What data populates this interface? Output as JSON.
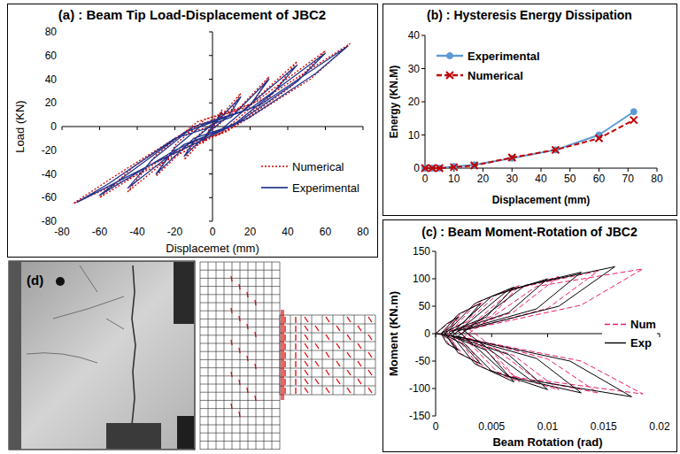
{
  "chart_data": [
    {
      "type": "line",
      "title": "(a) : Beam Tip Load-Displacement of JBC2",
      "x_label": "Displacemet (mm)",
      "y_label": "Load (KN)",
      "xlim": [
        -80,
        80
      ],
      "ylim": [
        -80,
        80
      ],
      "xticks": [
        -80,
        -60,
        -40,
        -20,
        0,
        20,
        40,
        60,
        80
      ],
      "yticks": [
        -80,
        -60,
        -40,
        -20,
        0,
        20,
        40,
        60,
        80
      ],
      "grid": false,
      "legend": "lower right",
      "series": [
        {
          "name": "Numerical",
          "color": "#d00000",
          "line_style": "dotted",
          "marker": "none",
          "x": [
            0,
            5,
            2,
            -1,
            -5,
            -2,
            1,
            15,
            8,
            -1,
            -15,
            -8,
            1,
            12,
            30,
            19,
            4,
            -12,
            -30,
            -19,
            -4,
            18,
            45,
            30,
            8,
            -18,
            -45,
            -30,
            -8,
            22,
            60,
            42,
            12,
            -24,
            -60,
            -42,
            -12,
            28,
            73,
            52,
            16,
            -32,
            -74,
            -52,
            -16,
            0
          ],
          "values": [
            0,
            14,
            3,
            -3,
            -14,
            -3,
            3,
            28,
            8,
            -4,
            -28,
            -8,
            4,
            12,
            42,
            14,
            -6,
            -14,
            -42,
            -14,
            6,
            16,
            55,
            24,
            -4,
            -20,
            -55,
            -24,
            4,
            20,
            64,
            34,
            0,
            -25,
            -60,
            -34,
            -2,
            24,
            70,
            40,
            4,
            -35,
            -65,
            -42,
            -6,
            0
          ]
        },
        {
          "name": "Experimental",
          "color": "#24358c",
          "line_style": "solid",
          "marker": "none",
          "x": [
            0,
            5,
            2,
            -1,
            -5,
            -2,
            1,
            15,
            9,
            0,
            -15,
            -9,
            0,
            10,
            30,
            20,
            5,
            -10,
            -30,
            -20,
            -5,
            15,
            45,
            32,
            10,
            -15,
            -45,
            -32,
            -10,
            20,
            60,
            45,
            15,
            -20,
            -60,
            -45,
            -15,
            25,
            72,
            55,
            20,
            -30,
            -72,
            -55,
            -20,
            0
          ],
          "values": [
            0,
            12,
            4,
            -2,
            -12,
            -4,
            2,
            25,
            10,
            -2,
            -25,
            -10,
            2,
            8,
            40,
            18,
            -2,
            -10,
            -40,
            -18,
            2,
            12,
            52,
            28,
            0,
            -15,
            -52,
            -28,
            0,
            15,
            62,
            38,
            5,
            -20,
            -58,
            -40,
            -5,
            18,
            68,
            45,
            8,
            -30,
            -64,
            -48,
            -10,
            0
          ]
        }
      ]
    },
    {
      "type": "line",
      "title": "(b) : Hysteresis Energy Dissipation",
      "x_label": "Displacement (mm)",
      "y_label": "Energy (KN.M)",
      "xlim": [
        0,
        80
      ],
      "ylim": [
        0,
        40
      ],
      "xticks": [
        0,
        10,
        20,
        30,
        40,
        50,
        60,
        70,
        80
      ],
      "yticks": [
        0,
        10,
        20,
        30,
        40
      ],
      "grid": false,
      "legend": "upper left",
      "series": [
        {
          "name": "Experimental",
          "color": "#5b9bd5",
          "line_style": "solid",
          "marker": "circle",
          "x": [
            0,
            2.5,
            5,
            10,
            17,
            30,
            45,
            60,
            72
          ],
          "values": [
            0,
            0,
            0,
            0.5,
            1,
            3,
            5.5,
            10,
            17
          ]
        },
        {
          "name": "Numerical",
          "color": "#c00000",
          "line_style": "dashed",
          "marker": "x",
          "x": [
            0,
            2.5,
            5,
            10,
            17,
            30,
            45,
            60,
            72
          ],
          "values": [
            0,
            0,
            0,
            0.3,
            0.8,
            3.2,
            5.5,
            9,
            14.5
          ]
        }
      ]
    },
    {
      "type": "line",
      "title": "(c) : Beam Moment-Rotation of JBC2",
      "x_label": "Beam Rotation (rad)",
      "y_label": "Moment (KN.m)",
      "xlim": [
        0,
        0.02
      ],
      "ylim": [
        -150,
        150
      ],
      "xticks": [
        0,
        0.005,
        0.01,
        0.015,
        0.02
      ],
      "yticks": [
        -150,
        -100,
        -50,
        0,
        50,
        100,
        150
      ],
      "grid": false,
      "legend": "center right",
      "series": [
        {
          "name": "Num",
          "color": "#e8196e",
          "line_style": "dashed",
          "marker": "none",
          "x": [
            0,
            0.0012,
            0.0022,
            0.0014,
            0.0006,
            0.0012,
            0.0022,
            0.0014,
            0.0006,
            0.0022,
            0.0042,
            0.0028,
            0.001,
            0.0022,
            0.0042,
            0.0028,
            0.001,
            0.0038,
            0.0075,
            0.005,
            0.0015,
            0.0038,
            0.0075,
            0.005,
            0.0015,
            0.0055,
            0.011,
            0.007,
            0.002,
            0.0055,
            0.011,
            0.007,
            0.002,
            0.007,
            0.0145,
            0.01,
            0.0025,
            0.007,
            0.0145,
            0.01,
            0.0025,
            0.009,
            0.0185,
            0.013,
            0.003,
            0.009,
            0.0185,
            0.013,
            0.0025,
            0
          ],
          "values": [
            0,
            20,
            32,
            12,
            0,
            -20,
            -32,
            -12,
            0,
            36,
            58,
            22,
            3,
            -36,
            -58,
            -22,
            -3,
            58,
            88,
            32,
            4,
            -58,
            -88,
            -32,
            -4,
            72,
            104,
            40,
            5,
            -70,
            -102,
            -40,
            -5,
            82,
            114,
            46,
            6,
            -78,
            -108,
            -46,
            -6,
            86,
            118,
            52,
            8,
            -84,
            -110,
            -50,
            -8,
            0
          ]
        },
        {
          "name": "Exp",
          "color": "#000000",
          "line_style": "solid",
          "marker": "none",
          "x": [
            0,
            0.001,
            0.002,
            0.0012,
            0.0005,
            0.001,
            0.002,
            0.0012,
            0.0005,
            0.002,
            0.004,
            0.0025,
            0.0008,
            0.002,
            0.004,
            0.0025,
            0.0008,
            0.0035,
            0.007,
            0.0045,
            0.0012,
            0.0035,
            0.007,
            0.0045,
            0.0012,
            0.005,
            0.01,
            0.0065,
            0.0015,
            0.005,
            0.01,
            0.0065,
            0.0015,
            0.0065,
            0.013,
            0.009,
            0.002,
            0.0065,
            0.013,
            0.009,
            0.002,
            0.008,
            0.016,
            0.011,
            0.0025,
            0.0085,
            0.0175,
            0.012,
            0.002,
            0
          ],
          "values": [
            0,
            18,
            30,
            10,
            0,
            -18,
            -30,
            -10,
            0,
            35,
            55,
            20,
            2,
            -35,
            -55,
            -20,
            -2,
            55,
            85,
            30,
            3,
            -55,
            -88,
            -30,
            -3,
            68,
            100,
            38,
            4,
            -68,
            -102,
            -38,
            -4,
            80,
            112,
            45,
            5,
            -78,
            -108,
            -45,
            -5,
            88,
            122,
            50,
            6,
            -85,
            -115,
            -50,
            -6,
            0
          ]
        }
      ]
    }
  ],
  "photo": {
    "label": "(d)"
  }
}
